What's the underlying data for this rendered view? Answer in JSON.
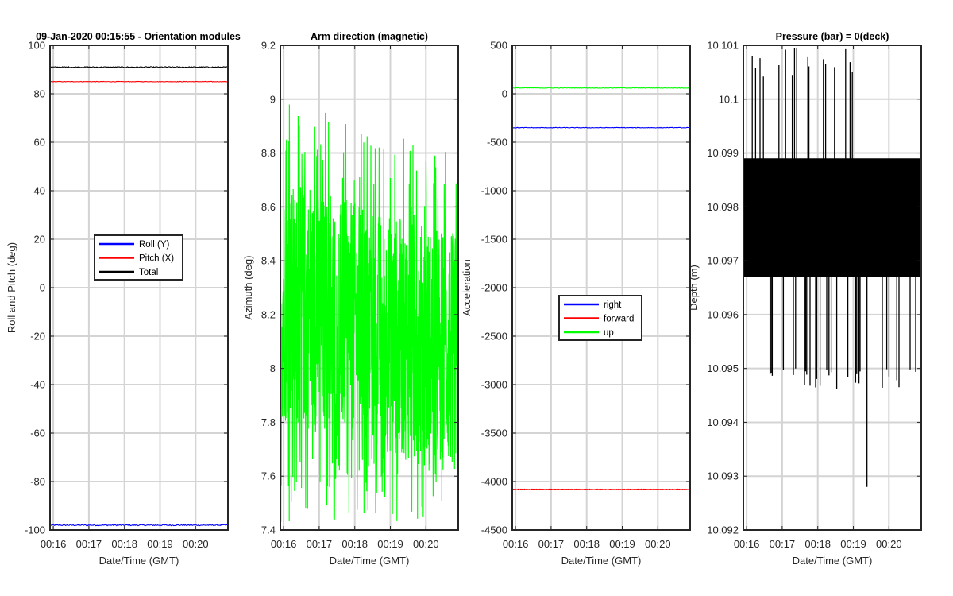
{
  "chart_data": [
    {
      "type": "line",
      "title": "09-Jan-2020 00:15:55 - Orientation modules",
      "xlabel": "Date/Time (GMT)",
      "ylabel": "Roll and Pitch (deg)",
      "x_range": [
        "00:15:55",
        "00:20:55"
      ],
      "x_ticks": [
        "00:16",
        "00:17",
        "00:18",
        "00:19",
        "00:20"
      ],
      "ylim": [
        -100,
        100
      ],
      "y_ticks": [
        "-100",
        "-80",
        "-60",
        "-40",
        "-20",
        "0",
        "20",
        "40",
        "60",
        "80",
        "100"
      ],
      "grid": true,
      "legend_position": "center",
      "series": [
        {
          "name": "Roll (Y)",
          "color": "#0000ff",
          "mean": -98,
          "noise": 0.25,
          "values_note": "nearly constant"
        },
        {
          "name": "Pitch (X)",
          "color": "#ff0000",
          "mean": 85,
          "noise": 0.1
        },
        {
          "name": "Total",
          "color": "#000000",
          "mean": 91,
          "noise": 0.2
        }
      ]
    },
    {
      "type": "line",
      "title": "Arm direction (magnetic)",
      "xlabel": "Date/Time (GMT)",
      "ylabel": "Azimuth (deg)",
      "x_ticks": [
        "00:16",
        "00:17",
        "00:18",
        "00:19",
        "00:20"
      ],
      "ylim": [
        7.4,
        9.2
      ],
      "y_ticks": [
        "7.4",
        "7.6",
        "7.8",
        "8",
        "8.2",
        "8.4",
        "8.6",
        "8.8",
        "9",
        "9.2"
      ],
      "grid": true,
      "series": [
        {
          "name": "",
          "color": "#00ff00",
          "mean_start": 8.25,
          "mean_end": 8.05,
          "low": 7.43,
          "high": 9.02
        }
      ]
    },
    {
      "type": "line",
      "title": "",
      "xlabel": "Date/Time (GMT)",
      "ylabel": "Acceleration",
      "x_ticks": [
        "00:16",
        "00:17",
        "00:18",
        "00:19",
        "00:20"
      ],
      "ylim": [
        -4500,
        500
      ],
      "y_ticks": [
        "-4500",
        "-4000",
        "-3500",
        "-3000",
        "-2500",
        "-2000",
        "-1500",
        "-1000",
        "-500",
        "0",
        "500"
      ],
      "grid": true,
      "legend_position": "center",
      "series": [
        {
          "name": "right",
          "color": "#0000ff",
          "mean": -350,
          "noise": 3
        },
        {
          "name": "forward",
          "color": "#ff0000",
          "mean": -4080,
          "noise": 3
        },
        {
          "name": "up",
          "color": "#00ff00",
          "mean": 60,
          "noise": 3
        }
      ]
    },
    {
      "type": "line",
      "title": "Pressure (bar) = 0(deck)",
      "xlabel": "Date/Time (GMT)",
      "ylabel": "Depth (m)",
      "x_ticks": [
        "00:16",
        "00:17",
        "00:18",
        "00:19",
        "00:20"
      ],
      "ylim": [
        10.092,
        10.101
      ],
      "y_ticks": [
        "10.092",
        "10.093",
        "10.094",
        "10.095",
        "10.096",
        "10.097",
        "10.098",
        "10.099",
        "10.1",
        "10.101"
      ],
      "grid": true,
      "series": [
        {
          "name": "",
          "color": "#000000",
          "band_low": 10.0967,
          "band_high": 10.0989,
          "spike_high": 10.101,
          "spike_low": 10.0946,
          "min": 10.0928
        }
      ]
    }
  ]
}
